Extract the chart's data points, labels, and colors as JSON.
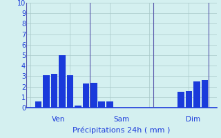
{
  "background_color": "#d4f0f0",
  "grid_color": "#a8c8c8",
  "bar_color": "#1a3adb",
  "ylim": [
    0,
    10
  ],
  "yticks": [
    0,
    1,
    2,
    3,
    4,
    5,
    6,
    7,
    8,
    9,
    10
  ],
  "day_labels": [
    "Ven",
    "Sam",
    "Dim"
  ],
  "num_bars": 24,
  "bar_values": [
    0,
    0.6,
    3.1,
    3.2,
    5.0,
    3.1,
    0.2,
    2.3,
    2.4,
    0.6,
    0.6,
    0,
    0,
    0,
    0,
    0,
    0,
    0,
    0,
    1.5,
    1.6,
    2.5,
    2.6,
    0
  ],
  "xlabel": "Précipitations 24h ( mm )",
  "day_sep_color": "#5555aa",
  "text_color": "#1a3adb",
  "tick_color": "#1a3adb",
  "axis_color": "#1a3adb",
  "day_boundaries": [
    0,
    8,
    16,
    23
  ],
  "day_centers": [
    3.5,
    11.5,
    20.5
  ]
}
